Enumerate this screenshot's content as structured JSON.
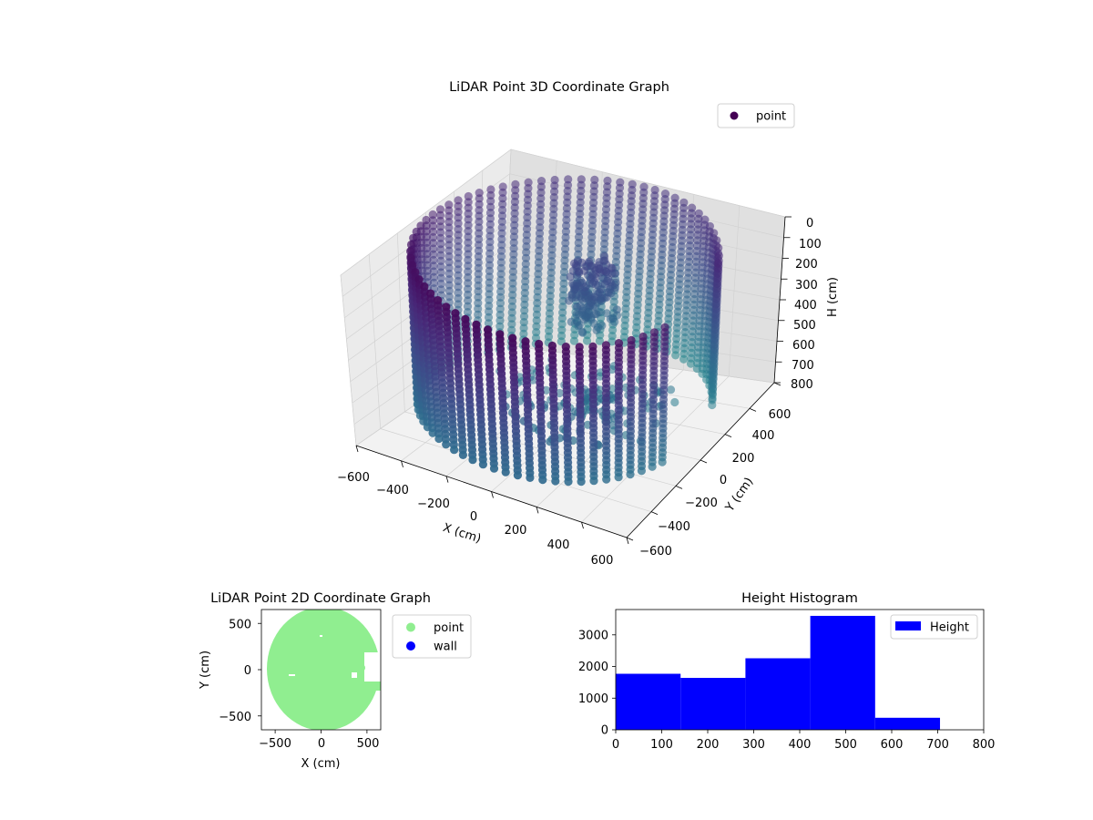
{
  "chart_data": [
    {
      "type": "scatter",
      "projection": "3d",
      "title": "LiDAR Point 3D Coordinate Graph",
      "xlabel": "X (cm)",
      "ylabel": "Y (cm)",
      "zlabel": "H (cm)",
      "xlim": [
        -600,
        600
      ],
      "ylim": [
        -600,
        600
      ],
      "zlim": [
        0,
        800
      ],
      "z_inverted": true,
      "xticks": [
        "−600",
        "−400",
        "−200",
        "0",
        "200",
        "400",
        "600"
      ],
      "yticks": [
        "−600",
        "−400",
        "−200",
        "0",
        "200",
        "400",
        "600"
      ],
      "zticks": [
        "0",
        "100",
        "200",
        "300",
        "400",
        "500",
        "600",
        "700",
        "800"
      ],
      "legend": {
        "entries": [
          "point"
        ],
        "placement": "top-right",
        "marker_color": "#440154"
      },
      "colormap": "viridis",
      "grid": true,
      "wall": {
        "center": [
          0,
          0
        ],
        "radius_cm": 600,
        "height_range_cm": [
          0,
          700
        ],
        "arc_start_deg": 25,
        "arc_end_deg": 360,
        "open_gap_deg": [
          -10,
          25
        ]
      },
      "clusters": [
        {
          "label": "cluster",
          "x": -50,
          "y": 300,
          "h_range": [
            200,
            500
          ]
        },
        {
          "label": "floor blob",
          "x": 100,
          "y": 0,
          "h_range": [
            600,
            700
          ]
        }
      ]
    },
    {
      "type": "scatter",
      "title": "LiDAR Point 2D Coordinate Graph",
      "xlabel": "X (cm)",
      "ylabel": "Y (cm)",
      "xlim": [
        -650,
        650
      ],
      "ylim": [
        -650,
        650
      ],
      "xticks": [
        "−500",
        "0",
        "500"
      ],
      "yticks": [
        "500",
        "0",
        "−500"
      ],
      "series": [
        {
          "name": "point",
          "color": "#90ee90",
          "shape": "disk",
          "center": [
            0,
            0
          ],
          "radius": 600
        },
        {
          "name": "wall",
          "color": "#0000ff",
          "points": []
        }
      ],
      "legend": {
        "placement": "outside-right"
      }
    },
    {
      "type": "bar",
      "subtype": "histogram",
      "title": "Height Histogram",
      "xlim": [
        0,
        800
      ],
      "ylim": [
        0,
        3800
      ],
      "xticks": [
        "0",
        "100",
        "200",
        "300",
        "400",
        "500",
        "600",
        "700",
        "800"
      ],
      "yticks": [
        "0",
        "1000",
        "2000",
        "3000"
      ],
      "bins": [
        {
          "start": 0,
          "end": 141,
          "count": 1770
        },
        {
          "start": 141,
          "end": 282,
          "count": 1640
        },
        {
          "start": 282,
          "end": 423,
          "count": 2260
        },
        {
          "start": 423,
          "end": 564,
          "count": 3600
        },
        {
          "start": 564,
          "end": 705,
          "count": 380
        }
      ],
      "series": [
        {
          "name": "Height",
          "color": "#0000ff"
        }
      ],
      "legend": {
        "placement": "top-right"
      }
    }
  ]
}
